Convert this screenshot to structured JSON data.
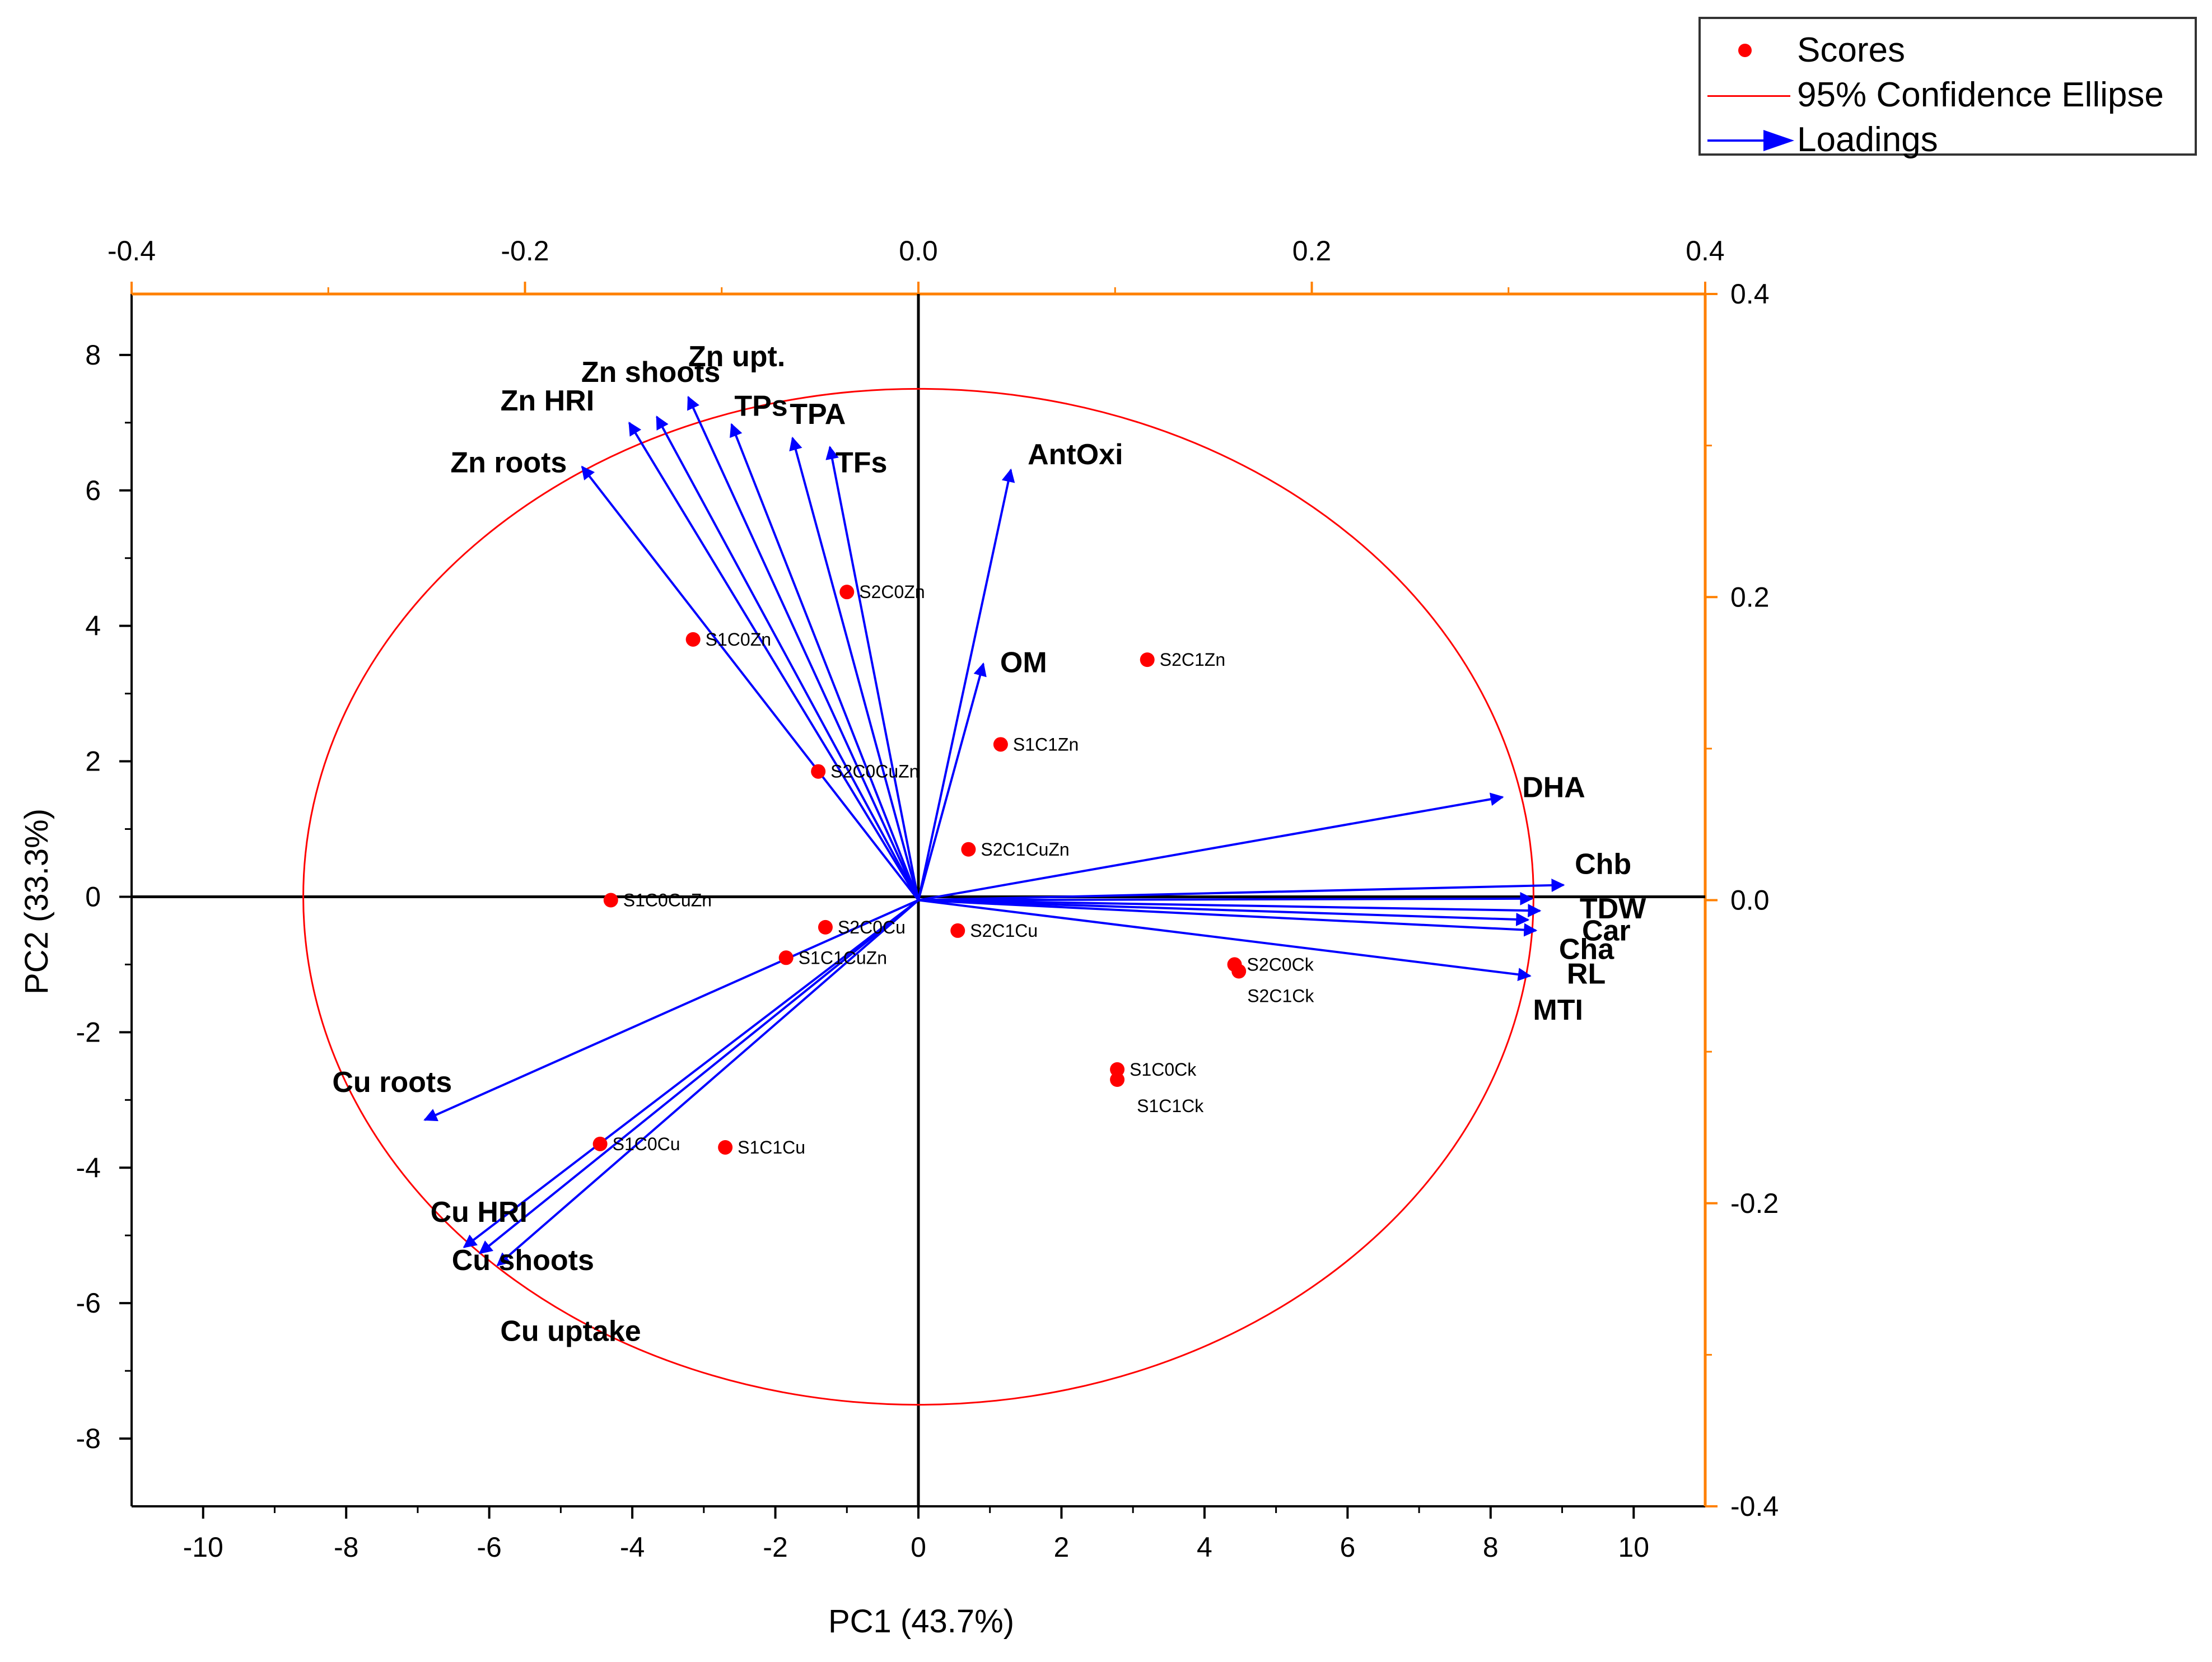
{
  "colors": {
    "score": "#ff0000",
    "ellipse": "#ff0000",
    "loading": "#0000ff",
    "secondary_axis": "#ff8000",
    "axis": "#000000"
  },
  "legend": {
    "items": [
      {
        "label": "Scores",
        "symbol": "dot"
      },
      {
        "label": "95% Confidence Ellipse",
        "symbol": "line"
      },
      {
        "label": "Loadings",
        "symbol": "arrow"
      }
    ]
  },
  "chart_data": {
    "type": "scatter",
    "subtype": "pca-biplot",
    "title": "",
    "xlabel": "PC1 (43.7%)",
    "ylabel": "PC2 (33.3%)",
    "xlim": [
      -11,
      11
    ],
    "ylim": [
      -9,
      8.9
    ],
    "xticks": [
      -10,
      -8,
      -6,
      -4,
      -2,
      0,
      2,
      4,
      6,
      8,
      10
    ],
    "xtick_labels": [
      "-10",
      "-8",
      "-6",
      "-4",
      "-2",
      "0",
      "2",
      "4",
      "6",
      "8",
      "10"
    ],
    "yticks": [
      -8,
      -6,
      -4,
      -2,
      0,
      2,
      4,
      6,
      8
    ],
    "ytick_labels": [
      "-8",
      "-6",
      "-4",
      "-2",
      "0",
      "2",
      "4",
      "6",
      "8"
    ],
    "secondary_xlim": [
      -0.4,
      0.4
    ],
    "secondary_xticks": [
      -0.4,
      -0.2,
      0.0,
      0.2,
      0.4
    ],
    "secondary_xtick_labels": [
      "-0.4",
      "-0.2",
      "0.0",
      "0.2",
      "0.4"
    ],
    "secondary_ylim": [
      -0.4,
      0.4
    ],
    "secondary_yticks": [
      -0.4,
      -0.2,
      0.0,
      0.2,
      0.4
    ],
    "secondary_ytick_labels": [
      "-0.4",
      "-0.2",
      "0.0",
      "0.2",
      "0.4"
    ],
    "ellipse": {
      "center": [
        0,
        0
      ],
      "semi_axis_x": 8.6,
      "semi_axis_y": 7.5
    },
    "scores": [
      {
        "label": "S2C0Zn",
        "x": -1.0,
        "y": 4.5
      },
      {
        "label": "S1C0Zn",
        "x": -3.15,
        "y": 3.8
      },
      {
        "label": "S2C1Zn",
        "x": 3.2,
        "y": 3.5
      },
      {
        "label": "S1C1Zn",
        "x": 1.15,
        "y": 2.25
      },
      {
        "label": "S2C0CuZn",
        "x": -1.4,
        "y": 1.85
      },
      {
        "label": "S2C1CuZn",
        "x": 0.7,
        "y": 0.7
      },
      {
        "label": "S1C0CuZn",
        "x": -4.3,
        "y": -0.05
      },
      {
        "label": "S2C0Cu",
        "x": -1.3,
        "y": -0.45
      },
      {
        "label": "S2C1Cu",
        "x": 0.55,
        "y": -0.5
      },
      {
        "label": "S1C1CuZn",
        "x": -1.85,
        "y": -0.9
      },
      {
        "label": "S2C0Ck",
        "x": 4.42,
        "y": -1.0
      },
      {
        "label": "S2C1Ck",
        "x": 4.48,
        "y": -1.1
      },
      {
        "label": "S1C0Ck",
        "x": 2.78,
        "y": -2.55
      },
      {
        "label": "S1C1Ck",
        "x": 2.78,
        "y": -2.7
      },
      {
        "label": "S1C0Cu",
        "x": -4.45,
        "y": -3.65
      },
      {
        "label": "S1C1Cu",
        "x": -2.7,
        "y": -3.7
      }
    ],
    "loadings": [
      {
        "label": "Zn upt.",
        "pc1": -0.117,
        "pc2": 0.332
      },
      {
        "label": "Zn shoots",
        "pc1": -0.133,
        "pc2": 0.319
      },
      {
        "label": "Zn HRI",
        "pc1": -0.147,
        "pc2": 0.315
      },
      {
        "label": "TPs",
        "pc1": -0.095,
        "pc2": 0.314
      },
      {
        "label": "TPA",
        "pc1": -0.064,
        "pc2": 0.305
      },
      {
        "label": "TFs",
        "pc1": -0.045,
        "pc2": 0.299
      },
      {
        "label": "Zn roots",
        "pc1": -0.171,
        "pc2": 0.286
      },
      {
        "label": "AntOxi",
        "pc1": 0.047,
        "pc2": 0.284
      },
      {
        "label": "OM",
        "pc1": 0.033,
        "pc2": 0.156
      },
      {
        "label": "DHA",
        "pc1": 0.297,
        "pc2": 0.068
      },
      {
        "label": "Chb",
        "pc1": 0.328,
        "pc2": 0.01
      },
      {
        "label": "TDW",
        "pc1": 0.312,
        "pc2": 0.001
      },
      {
        "label": "Car",
        "pc1": 0.316,
        "pc2": -0.007
      },
      {
        "label": "Cha",
        "pc1": 0.31,
        "pc2": -0.013
      },
      {
        "label": "RL",
        "pc1": 0.314,
        "pc2": -0.02
      },
      {
        "label": "MTI",
        "pc1": 0.311,
        "pc2": -0.05
      },
      {
        "label": "Cu roots",
        "pc1": -0.251,
        "pc2": -0.145
      },
      {
        "label": "Cu HRI",
        "pc1": -0.231,
        "pc2": -0.229
      },
      {
        "label": "Cu shoots",
        "pc1": -0.223,
        "pc2": -0.233
      },
      {
        "label": "Cu uptake",
        "pc1": -0.214,
        "pc2": -0.241
      }
    ]
  }
}
